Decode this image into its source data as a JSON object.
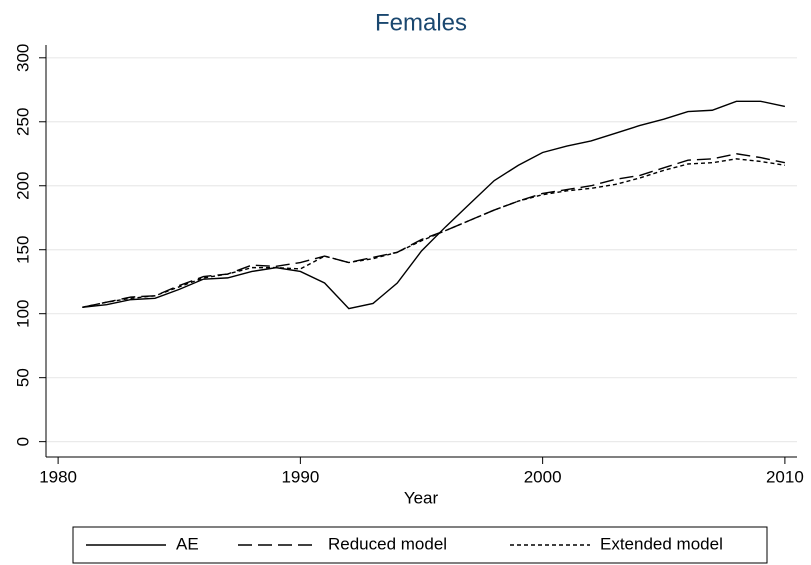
{
  "chart_data": {
    "type": "line",
    "title": "Females",
    "xlabel": "Year",
    "x": [
      1981,
      1982,
      1983,
      1984,
      1985,
      1986,
      1987,
      1988,
      1989,
      1990,
      1991,
      1992,
      1993,
      1994,
      1995,
      1996,
      1997,
      1998,
      1999,
      2000,
      2001,
      2002,
      2003,
      2004,
      2005,
      2006,
      2007,
      2008,
      2009,
      2010
    ],
    "series": [
      {
        "name": "AE",
        "color": "#000000",
        "dash": "none",
        "values": [
          105,
          107,
          111,
          112,
          119,
          127,
          128,
          133,
          136,
          133,
          124,
          104,
          108,
          124,
          149,
          168,
          186,
          204,
          216,
          226,
          231,
          235,
          241,
          247,
          252,
          258,
          259,
          266,
          266,
          262
        ]
      },
      {
        "name": "Reduced model",
        "color": "#000000",
        "dash": "14 6",
        "values": [
          105,
          109,
          113,
          114,
          122,
          129,
          131,
          138,
          137,
          140,
          145,
          140,
          144,
          148,
          158,
          165,
          173,
          181,
          188,
          194,
          197,
          200,
          205,
          208,
          214,
          220,
          221,
          225,
          222,
          218
        ]
      },
      {
        "name": "Extended model",
        "color": "#000000",
        "dash": "4 3",
        "values": [
          105,
          109,
          112,
          114,
          121,
          128,
          131,
          136,
          136,
          135,
          145,
          140,
          143,
          148,
          157,
          165,
          173,
          181,
          188,
          193,
          196,
          198,
          201,
          206,
          212,
          217,
          218,
          221,
          219,
          216
        ]
      }
    ],
    "xlim": [
      1979.5,
      2010.5
    ],
    "xticks": [
      1980,
      1990,
      2000,
      2010
    ],
    "ylim": [
      -12,
      310
    ],
    "yticks": [
      0,
      50,
      100,
      150,
      200,
      250,
      300
    ],
    "grid": true,
    "legend": "bottom"
  }
}
